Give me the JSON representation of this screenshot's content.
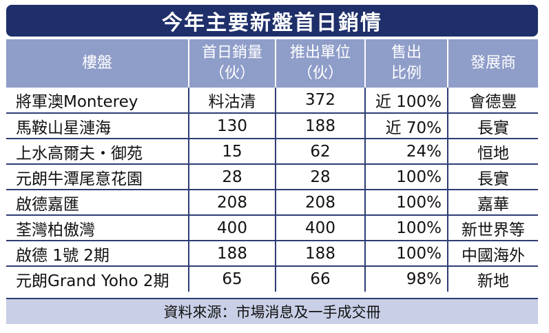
{
  "title": "今年主要新盤首日銷情",
  "colors": {
    "title_bg": "#1e2f6a",
    "header_bg": "#8f9dc9",
    "source_bg": "#c9cfe6",
    "rule": "#2e3c74"
  },
  "headers": [
    {
      "lines": [
        "樓盤"
      ]
    },
    {
      "lines": [
        "首日銷量",
        "（伙）"
      ]
    },
    {
      "lines": [
        "推出單位",
        "（伙）"
      ]
    },
    {
      "lines": [
        "售出",
        "比例"
      ]
    },
    {
      "lines": [
        "發展商"
      ]
    }
  ],
  "rows": [
    {
      "project": "將軍澳Monterey",
      "sold": "料沽清",
      "units": "372",
      "ratio": "近 100%",
      "developer": "會德豐"
    },
    {
      "project": "馬鞍山星漣海",
      "sold": "130",
      "units": "188",
      "ratio": "近 70%",
      "developer": "長實"
    },
    {
      "project": "上水高爾夫・御苑",
      "sold": "15",
      "units": "62",
      "ratio": "24%",
      "developer": "恒地"
    },
    {
      "project": "元朗牛潭尾意花園",
      "sold": "28",
      "units": "28",
      "ratio": "100%",
      "developer": "長實"
    },
    {
      "project": "啟德嘉匯",
      "sold": "208",
      "units": "208",
      "ratio": "100%",
      "developer": "嘉華"
    },
    {
      "project": "荃灣柏傲灣",
      "sold": "400",
      "units": "400",
      "ratio": "100%",
      "developer": "新世界等"
    },
    {
      "project": "啟德 1號 2期",
      "sold": "188",
      "units": "188",
      "ratio": "100%",
      "developer": "中國海外"
    },
    {
      "project": "元朗Grand Yoho 2期",
      "sold": "65",
      "units": "66",
      "ratio": "98%",
      "developer": "新地"
    }
  ],
  "source": "資料來源：市場消息及一手成交冊",
  "chart_data": {
    "type": "table",
    "title": "今年主要新盤首日銷情",
    "columns": [
      "樓盤",
      "首日銷量（伙）",
      "推出單位（伙）",
      "售出比例",
      "發展商"
    ],
    "rows": [
      [
        "將軍澳Monterey",
        "料沽清",
        372,
        "近 100%",
        "會德豐"
      ],
      [
        "馬鞍山星漣海",
        130,
        188,
        "近 70%",
        "長實"
      ],
      [
        "上水高爾夫・御苑",
        15,
        62,
        "24%",
        "恒地"
      ],
      [
        "元朗牛潭尾意花園",
        28,
        28,
        "100%",
        "長實"
      ],
      [
        "啟德嘉匯",
        208,
        208,
        "100%",
        "嘉華"
      ],
      [
        "荃灣柏傲灣",
        400,
        400,
        "100%",
        "新世界等"
      ],
      [
        "啟德 1號 2期",
        188,
        188,
        "100%",
        "中國海外"
      ],
      [
        "元朗Grand Yoho 2期",
        65,
        66,
        "98%",
        "新地"
      ]
    ],
    "source": "資料來源：市場消息及一手成交冊"
  }
}
